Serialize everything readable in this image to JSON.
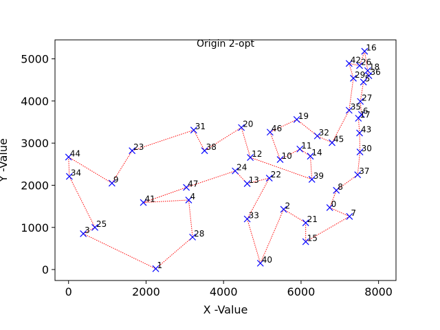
{
  "chart_data": {
    "type": "scatter",
    "title": "Origin 2-opt",
    "xlabel": "X -Value",
    "ylabel": "Y -Value",
    "xlim": [
      -350,
      8450
    ],
    "ylim": [
      -260,
      5450
    ],
    "xticks": [
      0,
      2000,
      4000,
      6000,
      8000
    ],
    "yticks": [
      0,
      1000,
      2000,
      3000,
      4000,
      5000
    ],
    "grid": false,
    "legend": "none",
    "marker_color": "#0000ff",
    "route_color": "#ff0000",
    "points": [
      {
        "label": "1",
        "x": 2250,
        "y": 20
      },
      {
        "label": "28",
        "x": 3200,
        "y": 770
      },
      {
        "label": "4",
        "x": 3100,
        "y": 1650
      },
      {
        "label": "41",
        "x": 1930,
        "y": 1590
      },
      {
        "label": "47",
        "x": 3040,
        "y": 1950
      },
      {
        "label": "24",
        "x": 4300,
        "y": 2340
      },
      {
        "label": "13",
        "x": 4610,
        "y": 2040
      },
      {
        "label": "22",
        "x": 5180,
        "y": 2170
      },
      {
        "label": "33",
        "x": 4610,
        "y": 1200
      },
      {
        "label": "40",
        "x": 4950,
        "y": 150
      },
      {
        "label": "2",
        "x": 5550,
        "y": 1430
      },
      {
        "label": "21",
        "x": 6120,
        "y": 1110
      },
      {
        "label": "15",
        "x": 6120,
        "y": 660
      },
      {
        "label": "7",
        "x": 7250,
        "y": 1260
      },
      {
        "label": "0",
        "x": 6740,
        "y": 1470
      },
      {
        "label": "8",
        "x": 6910,
        "y": 1880
      },
      {
        "label": "37",
        "x": 7460,
        "y": 2250
      },
      {
        "label": "30",
        "x": 7520,
        "y": 2790
      },
      {
        "label": "43",
        "x": 7510,
        "y": 3240
      },
      {
        "label": "17",
        "x": 7480,
        "y": 3590
      },
      {
        "label": "6",
        "x": 7560,
        "y": 3680
      },
      {
        "label": "27",
        "x": 7530,
        "y": 3990
      },
      {
        "label": "5",
        "x": 7610,
        "y": 4450
      },
      {
        "label": "36",
        "x": 7750,
        "y": 4600
      },
      {
        "label": "18",
        "x": 7720,
        "y": 4720
      },
      {
        "label": "16",
        "x": 7640,
        "y": 5180
      },
      {
        "label": "26",
        "x": 7510,
        "y": 4840
      },
      {
        "label": "42",
        "x": 7240,
        "y": 4890
      },
      {
        "label": "29",
        "x": 7350,
        "y": 4540
      },
      {
        "label": "35",
        "x": 7240,
        "y": 3780
      },
      {
        "label": "45",
        "x": 6800,
        "y": 3010
      },
      {
        "label": "32",
        "x": 6420,
        "y": 3170
      },
      {
        "label": "19",
        "x": 5890,
        "y": 3560
      },
      {
        "label": "46",
        "x": 5200,
        "y": 3260
      },
      {
        "label": "10",
        "x": 5460,
        "y": 2610
      },
      {
        "label": "11",
        "x": 5970,
        "y": 2860
      },
      {
        "label": "14",
        "x": 6240,
        "y": 2690
      },
      {
        "label": "39",
        "x": 6280,
        "y": 2140
      },
      {
        "label": "12",
        "x": 4690,
        "y": 2660
      },
      {
        "label": "20",
        "x": 4460,
        "y": 3370
      },
      {
        "label": "38",
        "x": 3510,
        "y": 2820
      },
      {
        "label": "31",
        "x": 3230,
        "y": 3310
      },
      {
        "label": "23",
        "x": 1640,
        "y": 2820
      },
      {
        "label": "9",
        "x": 1120,
        "y": 2050
      },
      {
        "label": "44",
        "x": 0,
        "y": 2670
      },
      {
        "label": "34",
        "x": 20,
        "y": 2210
      },
      {
        "label": "25",
        "x": 680,
        "y": 1000
      },
      {
        "label": "3",
        "x": 380,
        "y": 850
      }
    ],
    "route": [
      "1",
      "28",
      "4",
      "41",
      "47",
      "24",
      "13",
      "22",
      "33",
      "40",
      "2",
      "21",
      "15",
      "7",
      "0",
      "8",
      "37",
      "30",
      "43",
      "17",
      "6",
      "27",
      "5",
      "36",
      "18",
      "16",
      "26",
      "42",
      "29",
      "35",
      "45",
      "32",
      "19",
      "46",
      "10",
      "11",
      "14",
      "39",
      "12",
      "20",
      "38",
      "31",
      "23",
      "9",
      "44",
      "34",
      "25",
      "3",
      "1"
    ]
  }
}
